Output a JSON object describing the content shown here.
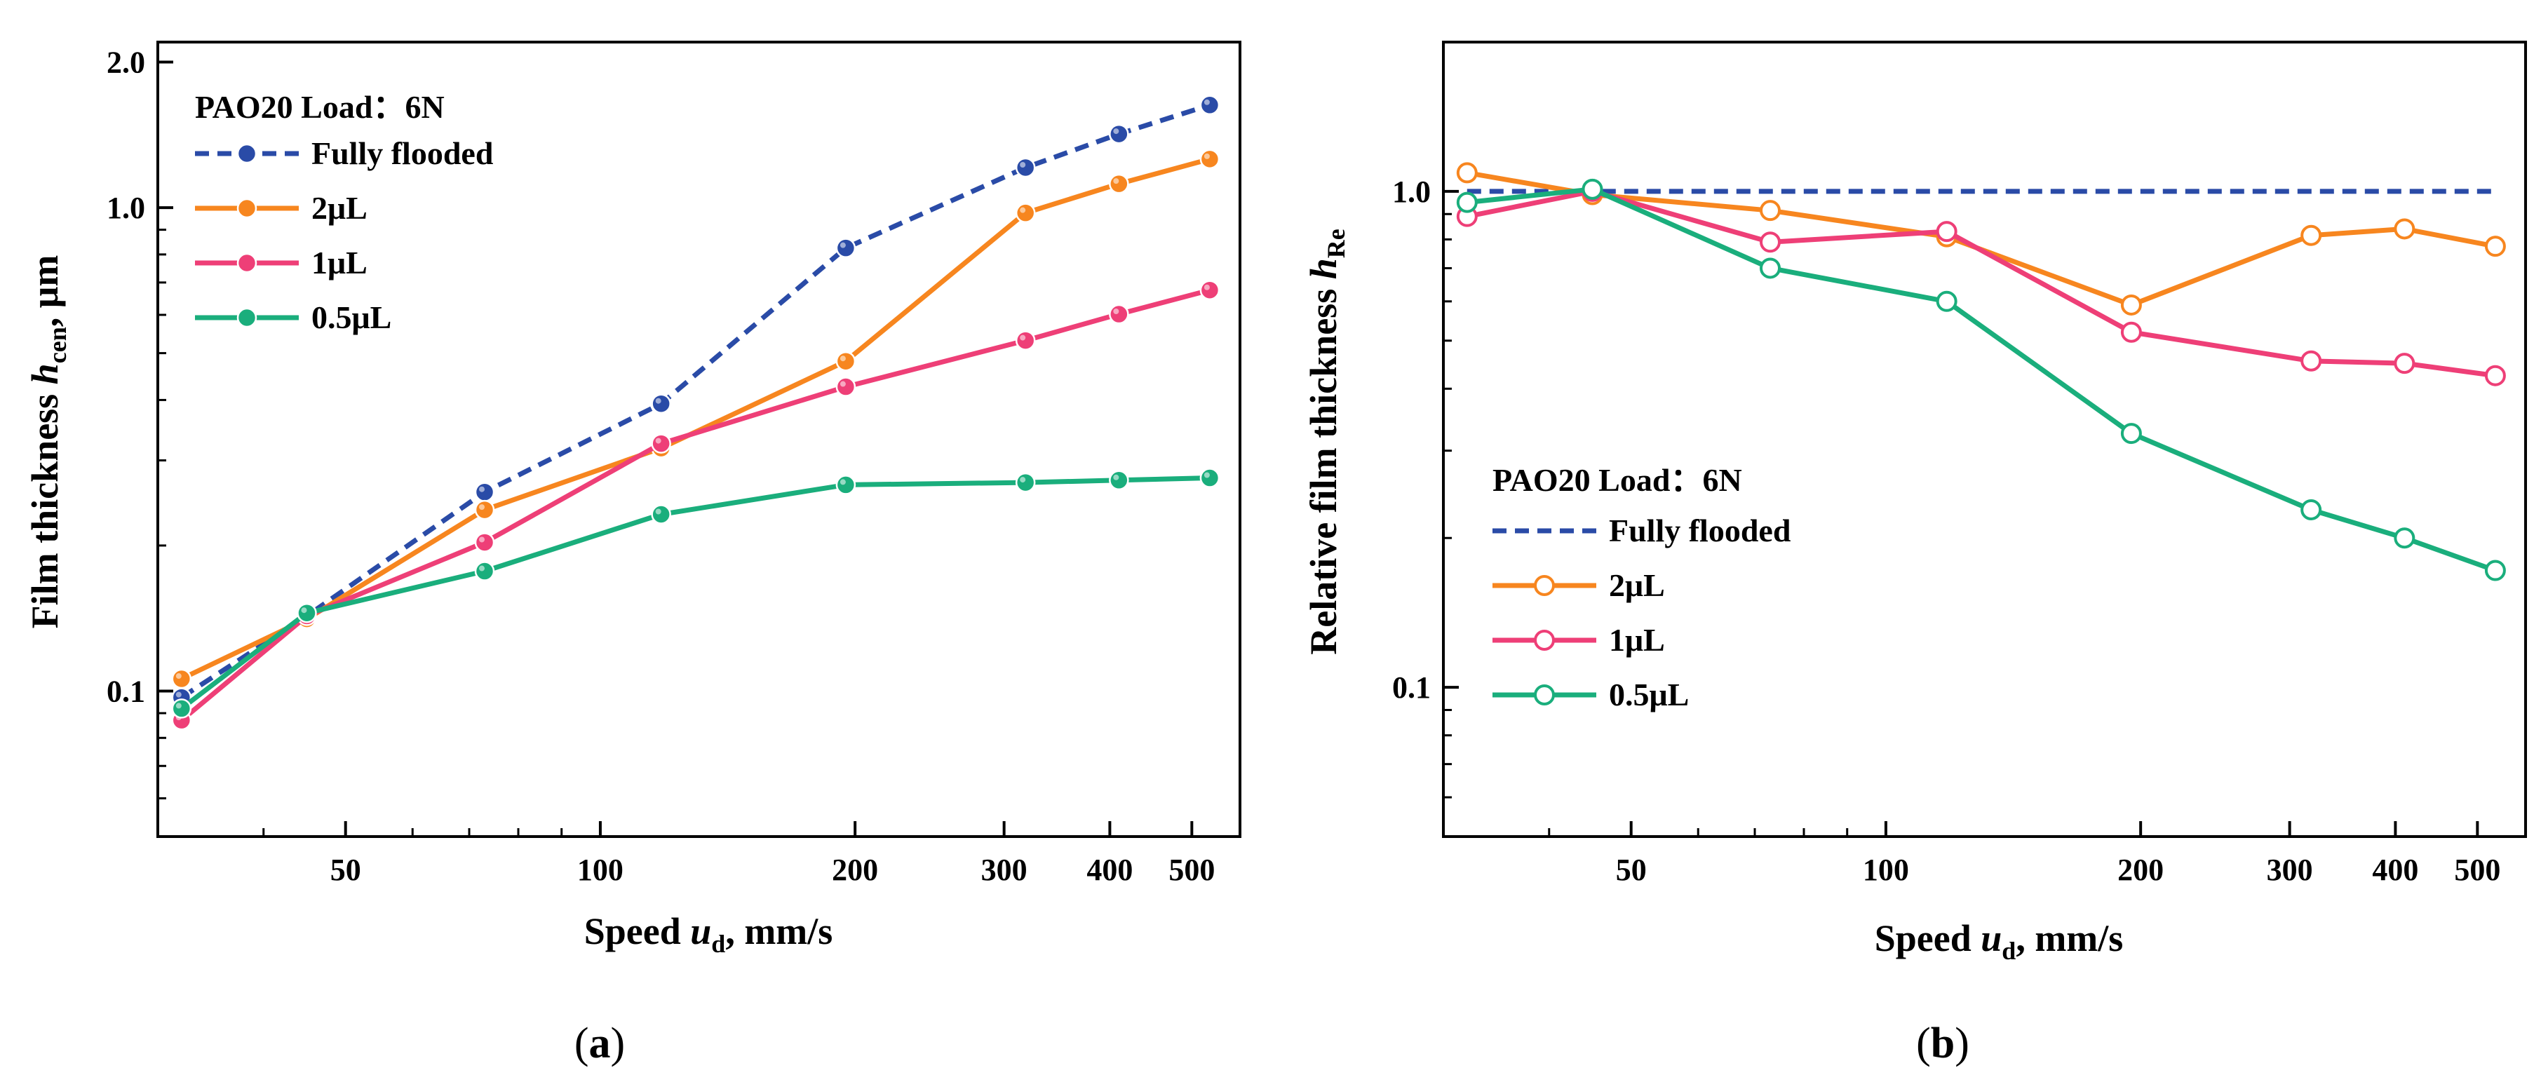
{
  "chart_data": [
    {
      "id": "a",
      "type": "line",
      "yscale": "log",
      "xscale": "log",
      "title": "",
      "xlabel": {
        "main": "Speed ",
        "var": "u",
        "sub": "d",
        "rest": ", mm/s"
      },
      "ylabel": {
        "main": "Film thickness ",
        "var": "h",
        "sub": "cen",
        "rest": ", μm"
      },
      "xlim": [
        30,
        570
      ],
      "ylim": [
        0.05,
        2.2
      ],
      "xticks": [
        {
          "value": 50,
          "label": "50"
        },
        {
          "value": 100,
          "label": "100"
        },
        {
          "value": 200,
          "label": "200"
        },
        {
          "value": 300,
          "label": "300"
        },
        {
          "value": 400,
          "label": "400"
        },
        {
          "value": 500,
          "label": "500"
        }
      ],
      "yticks": [
        {
          "value": 0.1,
          "label": "0.1"
        },
        {
          "value": 1.0,
          "label": "1.0"
        },
        {
          "value": 2.0,
          "label": "2.0"
        }
      ],
      "legend_title": "PAO20   Load：6N",
      "legend_position": "top-left",
      "marker": "filled",
      "x": [
        32,
        45,
        73,
        118,
        195,
        318,
        410,
        525
      ],
      "series": [
        {
          "name": "Fully flooded",
          "color": "#2A4BA7",
          "dashed": true,
          "values": [
            0.097,
            0.143,
            0.258,
            0.393,
            0.825,
            1.21,
            1.42,
            1.63
          ]
        },
        {
          "name": "2μL",
          "color": "#F7861F",
          "dashed": false,
          "values": [
            0.106,
            0.141,
            0.237,
            0.318,
            0.481,
            0.975,
            1.12,
            1.26
          ]
        },
        {
          "name": "1μL",
          "color": "#EE3F77",
          "dashed": false,
          "values": [
            0.087,
            0.143,
            0.203,
            0.325,
            0.426,
            0.531,
            0.602,
            0.675
          ]
        },
        {
          "name": "0.5μL",
          "color": "#1AAE7C",
          "dashed": false,
          "values": [
            0.092,
            0.145,
            0.177,
            0.232,
            0.267,
            0.27,
            0.273,
            0.276
          ]
        }
      ]
    },
    {
      "id": "b",
      "type": "line",
      "yscale": "log",
      "xscale": "log",
      "title": "",
      "xlabel": {
        "main": "Speed ",
        "var": "u",
        "sub": "d",
        "rest": ", mm/s"
      },
      "ylabel": {
        "main": "Relative film thickness ",
        "var": "h",
        "sub": "Re",
        "rest": ""
      },
      "xlim": [
        30,
        570
      ],
      "ylim": [
        0.05,
        2.0
      ],
      "xticks": [
        {
          "value": 50,
          "label": "50"
        },
        {
          "value": 100,
          "label": "100"
        },
        {
          "value": 200,
          "label": "200"
        },
        {
          "value": 300,
          "label": "300"
        },
        {
          "value": 400,
          "label": "400"
        },
        {
          "value": 500,
          "label": "500"
        }
      ],
      "yticks": [
        {
          "value": 0.1,
          "label": "0.1"
        },
        {
          "value": 1.0,
          "label": "1.0"
        }
      ],
      "legend_title": "PAO20   Load：6N",
      "legend_position": "center-left",
      "marker": "open",
      "x": [
        32,
        45,
        73,
        118,
        195,
        318,
        410,
        525
      ],
      "series": [
        {
          "name": "Fully flooded",
          "color": "#2A4BA7",
          "dashed": true,
          "no_markers": true,
          "values": [
            1.0,
            1.0,
            1.0,
            1.0,
            1.0,
            1.0,
            1.0,
            1.0
          ]
        },
        {
          "name": "2μL",
          "color": "#F7861F",
          "dashed": false,
          "values": [
            1.09,
            0.985,
            0.915,
            0.81,
            0.59,
            0.815,
            0.84,
            0.775
          ]
        },
        {
          "name": "1μL",
          "color": "#EE3F77",
          "dashed": false,
          "values": [
            0.89,
            1.0,
            0.79,
            0.83,
            0.52,
            0.455,
            0.45,
            0.425
          ]
        },
        {
          "name": "0.5μL",
          "color": "#1AAE7C",
          "dashed": false,
          "values": [
            0.95,
            1.01,
            0.7,
            0.6,
            0.325,
            0.228,
            0.2,
            0.172
          ]
        }
      ]
    }
  ],
  "panel_labels": [
    "a",
    "b"
  ]
}
